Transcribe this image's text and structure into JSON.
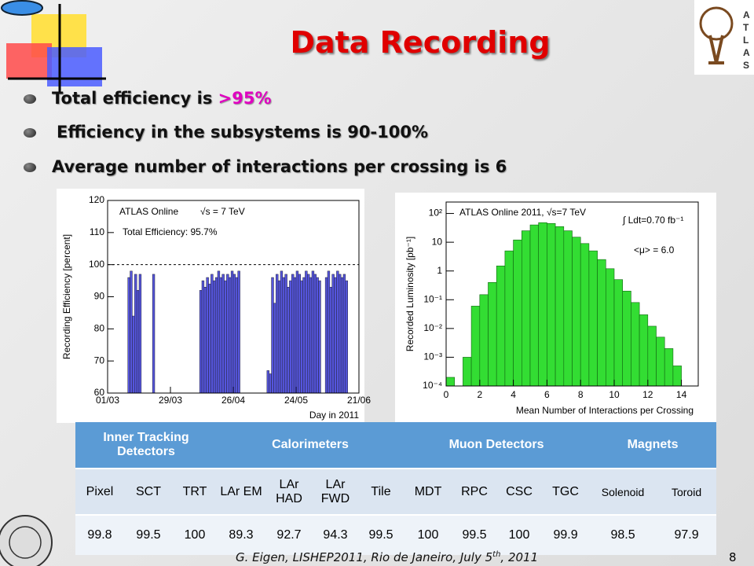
{
  "title": "Data Recording",
  "bullets": [
    {
      "text": "Total efficiency is ",
      "highlight": ">95%"
    },
    {
      "text": "Efficiency in the subsystems is 90-100%"
    },
    {
      "text": "Average number of interactions per crossing is 6"
    }
  ],
  "chart_data": [
    {
      "type": "bar",
      "ylabel": "Recording Efficiency [percent]",
      "xlabel": "Day in 2011",
      "annotations": [
        "ATLAS Online",
        "√s = 7 TeV",
        "Total Efficiency: 95.7%"
      ],
      "x": [
        9,
        10,
        11,
        12,
        13,
        14,
        20,
        41,
        42,
        43,
        44,
        45,
        46,
        47,
        48,
        49,
        50,
        51,
        52,
        53,
        54,
        55,
        56,
        57,
        58,
        71,
        72,
        73,
        74,
        75,
        76,
        77,
        78,
        79,
        80,
        81,
        82,
        83,
        84,
        85,
        86,
        87,
        88,
        89,
        90,
        91,
        92,
        93,
        94,
        97,
        98,
        99,
        100,
        101,
        102,
        103,
        104,
        105,
        106
      ],
      "values": [
        96,
        98,
        84,
        97,
        92,
        97,
        97,
        92,
        95,
        93,
        96,
        94,
        97,
        95,
        96,
        98,
        96,
        97,
        95,
        97,
        96,
        98,
        97,
        96,
        98,
        67,
        66,
        96,
        88,
        97,
        95,
        98,
        96,
        97,
        93,
        95,
        97,
        96,
        98,
        97,
        95,
        96,
        98,
        97,
        96,
        98,
        97,
        96,
        95,
        96,
        98,
        93,
        97,
        96,
        98,
        97,
        96,
        97,
        95
      ],
      "color": "#5555dd",
      "reference_line": 100,
      "xlim": [
        0,
        112
      ],
      "xticks": [
        {
          "value": 0,
          "label": "01/03"
        },
        {
          "value": 28,
          "label": "29/03"
        },
        {
          "value": 56,
          "label": "26/04"
        },
        {
          "value": 84,
          "label": "24/05"
        },
        {
          "value": 112,
          "label": "21/06"
        }
      ],
      "ylim": [
        60,
        120
      ],
      "yticks": [
        60,
        70,
        80,
        90,
        100,
        110,
        120
      ]
    },
    {
      "type": "histogram",
      "ylabel": "Recorded Luminosity [pb⁻¹]",
      "xlabel": "Mean Number of Interactions per Crossing",
      "annotations": [
        "ATLAS Online 2011, √s=7 TeV",
        "∫ Ldt=0.70 fb⁻¹",
        "<μ> = 6.0"
      ],
      "bins": [
        0,
        0.5,
        1,
        1.5,
        2,
        2.5,
        3,
        3.5,
        4,
        4.5,
        5,
        5.5,
        6,
        6.5,
        7,
        7.5,
        8,
        8.5,
        9,
        9.5,
        10,
        10.5,
        11,
        11.5,
        12,
        12.5,
        13,
        13.5,
        14
      ],
      "values": [
        0.0002,
        0.0001,
        0.001,
        0.06,
        0.15,
        0.4,
        1.5,
        5,
        12,
        25,
        40,
        48,
        45,
        35,
        25,
        15,
        9,
        5,
        2.5,
        1.2,
        0.5,
        0.2,
        0.08,
        0.03,
        0.012,
        0.005,
        0.002,
        0.0005
      ],
      "color": "#33dd33",
      "log_y": true,
      "xlim": [
        0,
        15
      ],
      "xticks": [
        0,
        2,
        4,
        6,
        8,
        10,
        12,
        14
      ],
      "ylim": [
        0.0001,
        250
      ],
      "yticks": [
        {
          "value": 0.0001,
          "label": "10⁻⁴"
        },
        {
          "value": 0.001,
          "label": "10⁻³"
        },
        {
          "value": 0.01,
          "label": "10⁻²"
        },
        {
          "value": 0.1,
          "label": "10⁻¹"
        },
        1,
        10,
        {
          "value": 100,
          "label": "10²"
        }
      ]
    }
  ],
  "table": {
    "groups": [
      "Inner Tracking Detectors",
      "Calorimeters",
      "Muon Detectors",
      "Magnets"
    ],
    "names": [
      "Pixel",
      "SCT",
      "TRT",
      "LAr EM",
      "LAr HAD",
      "LAr FWD",
      "Tile",
      "MDT",
      "RPC",
      "CSC",
      "TGC",
      "Solenoid",
      "Toroid"
    ],
    "values": [
      "99.8",
      "99.5",
      "100",
      "89.3",
      "92.7",
      "94.3",
      "99.5",
      "100",
      "99.5",
      "100",
      "99.9",
      "98.5",
      "97.9"
    ]
  },
  "footer": {
    "before": "G. Eigen, LISHEP2011, Rio de Janeiro, July 5",
    "sup": "th",
    "after": ", 2011"
  },
  "page_number": "8"
}
